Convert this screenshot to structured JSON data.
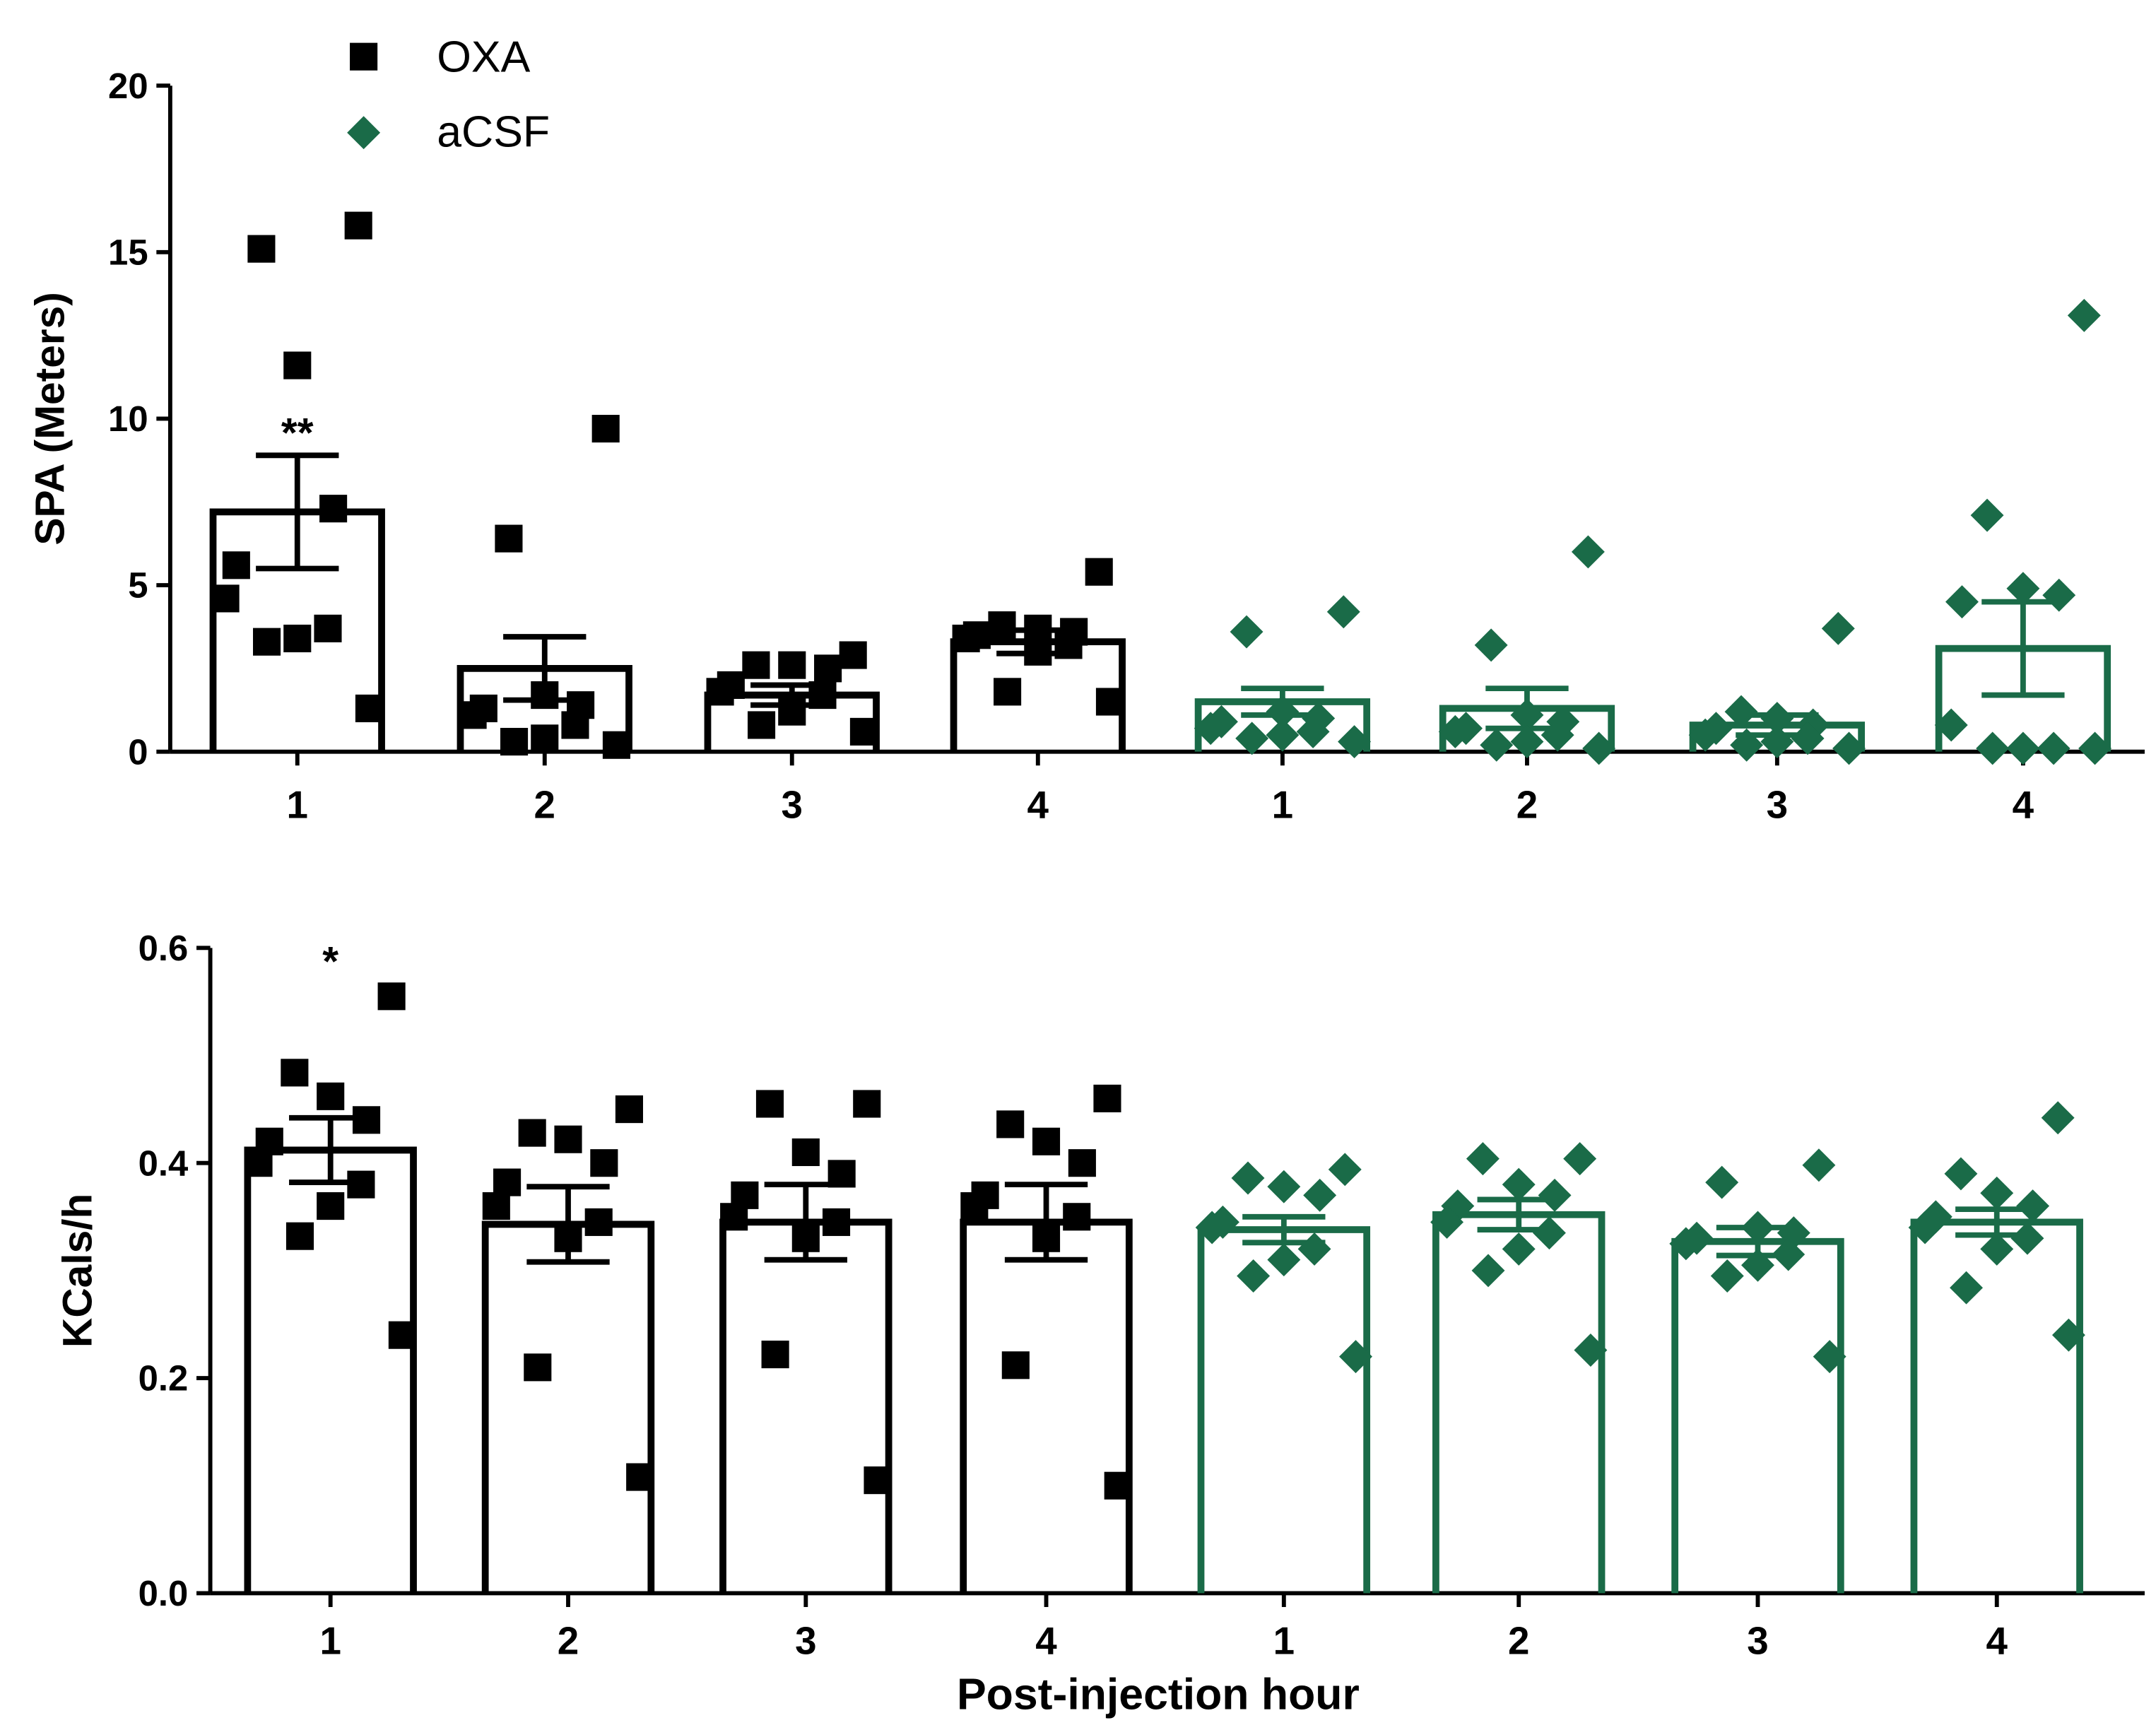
{
  "legend": [
    {
      "label": "OXA",
      "color": "#000000",
      "marker": "square"
    },
    {
      "label": "aCSF",
      "color": "#1a6b48",
      "marker": "diamond"
    }
  ],
  "colors": {
    "oxa": "#000000",
    "acsf": "#1a6b48"
  },
  "xlabel": "Post-injection hour",
  "chart_data": [
    {
      "type": "bar",
      "panel": "top",
      "ylabel": "SPA (Meters)",
      "ylim": [
        0,
        20
      ],
      "yticks": [
        0,
        5,
        10,
        15,
        20
      ],
      "categories": [
        "1",
        "2",
        "3",
        "4",
        "1",
        "2",
        "3",
        "4"
      ],
      "series": [
        {
          "name": "OXA",
          "color": "#000000",
          "marker": "square",
          "means": [
            7.2,
            2.5,
            1.7,
            3.3
          ],
          "sem": [
            1.7,
            0.95,
            0.3,
            0.35
          ],
          "points": [
            [
              15.8,
              15.1,
              11.6,
              7.3,
              5.6,
              4.6,
              3.7,
              3.4,
              3.3,
              1.3
            ],
            [
              9.7,
              6.4,
              1.7,
              1.4,
              1.3,
              1.1,
              0.8,
              0.4,
              0.3,
              0.2
            ],
            [
              2.9,
              2.6,
              2.6,
              2.5,
              2.0,
              1.8,
              1.7,
              1.2,
              0.8,
              0.6
            ],
            [
              5.4,
              3.8,
              3.7,
              3.6,
              3.5,
              3.4,
              3.2,
              3.0,
              1.8,
              1.5
            ]
          ],
          "annotations": [
            "**",
            "",
            "",
            ""
          ]
        },
        {
          "name": "aCSF",
          "color": "#1a6b48",
          "marker": "diamond",
          "means": [
            1.5,
            1.3,
            0.8,
            3.1
          ],
          "sem": [
            0.4,
            0.6,
            0.3,
            1.4
          ],
          "points": [
            [
              4.2,
              3.6,
              1.2,
              1.0,
              0.9,
              0.7,
              0.6,
              0.5,
              0.4,
              0.3
            ],
            [
              6.0,
              3.2,
              1.1,
              0.9,
              0.7,
              0.6,
              0.5,
              0.3,
              0.2,
              0.1
            ],
            [
              3.7,
              1.2,
              1.0,
              0.8,
              0.7,
              0.5,
              0.4,
              0.3,
              0.2,
              0.1
            ],
            [
              13.1,
              7.1,
              4.9,
              4.7,
              4.5,
              0.8,
              0.1,
              0.1,
              0.1,
              0.1
            ]
          ],
          "annotations": [
            "",
            "",
            "",
            ""
          ]
        }
      ]
    },
    {
      "type": "bar",
      "panel": "bottom",
      "ylabel": "KCals/h",
      "xlabel": "Post-injection hour",
      "ylim": [
        0,
        0.6
      ],
      "yticks": [
        "0.0",
        "0.2",
        "0.4",
        "0.6"
      ],
      "categories": [
        "1",
        "2",
        "3",
        "4",
        "1",
        "2",
        "3",
        "4"
      ],
      "series": [
        {
          "name": "OXA",
          "color": "#000000",
          "marker": "square",
          "means": [
            0.412,
            0.343,
            0.345,
            0.345
          ],
          "sem": [
            0.03,
            0.035,
            0.035,
            0.035
          ],
          "points": [
            [
              0.555,
              0.484,
              0.462,
              0.44,
              0.42,
              0.4,
              0.38,
              0.36,
              0.332,
              0.24
            ],
            [
              0.45,
              0.428,
              0.422,
              0.4,
              0.382,
              0.36,
              0.345,
              0.33,
              0.21,
              0.108
            ],
            [
              0.455,
              0.455,
              0.41,
              0.39,
              0.37,
              0.35,
              0.345,
              0.33,
              0.222,
              0.105
            ],
            [
              0.46,
              0.436,
              0.42,
              0.4,
              0.37,
              0.36,
              0.35,
              0.33,
              0.212,
              0.1
            ]
          ],
          "annotations": [
            "*",
            "",
            "",
            ""
          ]
        },
        {
          "name": "aCSF",
          "color": "#1a6b48",
          "marker": "diamond",
          "means": [
            0.338,
            0.352,
            0.327,
            0.345
          ],
          "sem": [
            0.012,
            0.014,
            0.013,
            0.012
          ],
          "points": [
            [
              0.394,
              0.386,
              0.378,
              0.37,
              0.345,
              0.34,
              0.32,
              0.31,
              0.295,
              0.22
            ],
            [
              0.404,
              0.404,
              0.38,
              0.37,
              0.36,
              0.345,
              0.335,
              0.32,
              0.3,
              0.226
            ],
            [
              0.398,
              0.382,
              0.34,
              0.335,
              0.33,
              0.325,
              0.315,
              0.305,
              0.295,
              0.22
            ],
            [
              0.442,
              0.39,
              0.372,
              0.36,
              0.35,
              0.34,
              0.33,
              0.32,
              0.284,
              0.24
            ]
          ],
          "annotations": [
            "",
            "",
            "",
            ""
          ]
        }
      ]
    }
  ]
}
